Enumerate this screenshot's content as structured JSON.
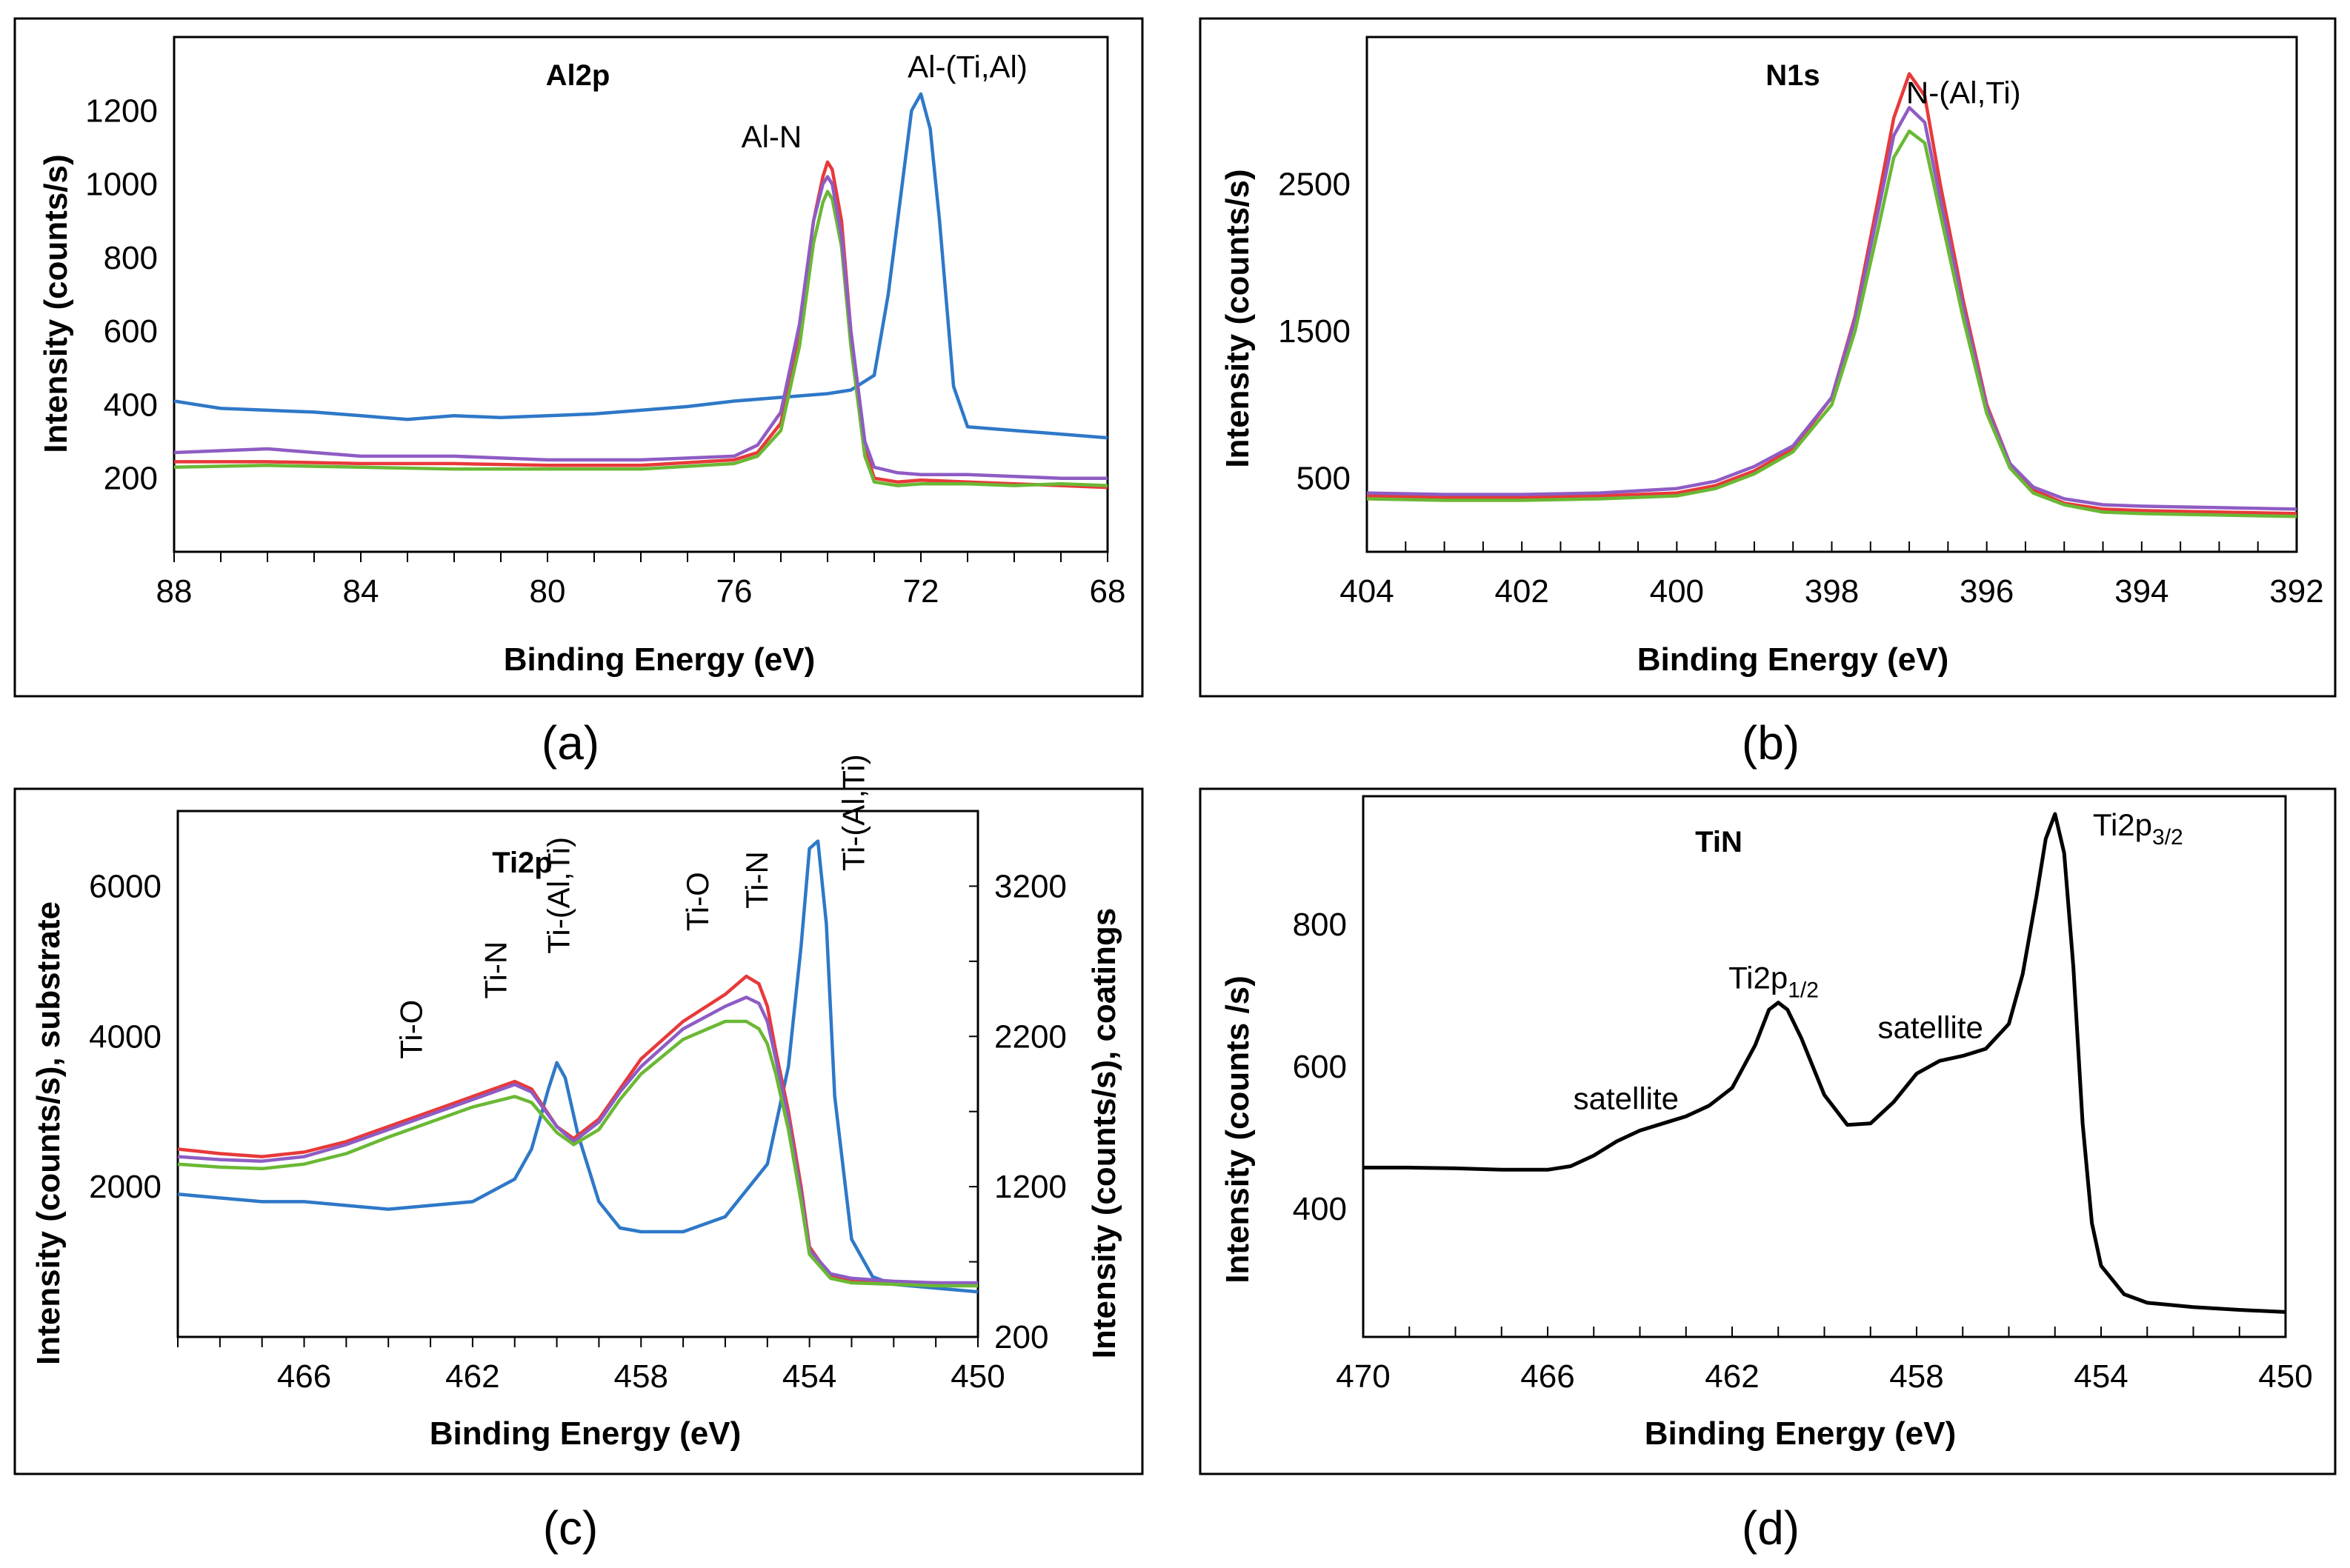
{
  "chart_data": [
    {
      "id": "a",
      "type": "line",
      "caption": "(a)",
      "title": "Al2p",
      "xlabel": "Binding Energy (eV)",
      "ylabel": "Intensity (counts/s)",
      "xlim": [
        88,
        68
      ],
      "ylim": [
        0,
        1400
      ],
      "xticks": [
        88,
        84,
        80,
        76,
        72,
        68
      ],
      "yticks": [
        200,
        400,
        600,
        800,
        1000,
        1200
      ],
      "annotations": [
        {
          "text": "Al-N",
          "x": 75.2,
          "y": 1100,
          "rotate": 0
        },
        {
          "text": "Al-(Ti,Al)",
          "x": 71.0,
          "y": 1290,
          "rotate": 0
        }
      ],
      "series": [
        {
          "name": "blue",
          "color": "#2e78c8",
          "x": [
            88,
            87,
            86,
            85,
            84,
            83,
            82,
            81,
            80,
            79,
            78,
            77,
            76,
            75,
            74,
            73.5,
            73,
            72.7,
            72.4,
            72.2,
            72,
            71.8,
            71.6,
            71.3,
            71,
            70.5,
            70,
            69,
            68
          ],
          "y": [
            410,
            390,
            385,
            380,
            370,
            360,
            370,
            365,
            370,
            375,
            385,
            395,
            410,
            420,
            430,
            440,
            480,
            700,
            1000,
            1200,
            1245,
            1150,
            900,
            450,
            340,
            335,
            330,
            320,
            310
          ]
        },
        {
          "name": "red",
          "color": "#e8393a",
          "x": [
            88,
            86,
            84,
            82,
            80,
            78,
            76,
            75.5,
            75,
            74.6,
            74.3,
            74.1,
            74,
            73.9,
            73.7,
            73.5,
            73.2,
            73,
            72.5,
            72,
            71,
            70,
            69,
            68
          ],
          "y": [
            245,
            245,
            240,
            240,
            235,
            235,
            250,
            270,
            350,
            600,
            900,
            1020,
            1060,
            1040,
            900,
            600,
            280,
            200,
            190,
            195,
            190,
            185,
            180,
            175
          ]
        },
        {
          "name": "green",
          "color": "#6ab834",
          "x": [
            88,
            86,
            84,
            82,
            80,
            78,
            76,
            75.5,
            75,
            74.6,
            74.3,
            74.1,
            74,
            73.9,
            73.7,
            73.5,
            73.2,
            73,
            72.5,
            72,
            71,
            70,
            69,
            68
          ],
          "y": [
            230,
            235,
            230,
            225,
            225,
            225,
            240,
            260,
            330,
            560,
            840,
            950,
            980,
            960,
            830,
            560,
            260,
            190,
            180,
            185,
            185,
            180,
            185,
            180
          ]
        },
        {
          "name": "purple",
          "color": "#8e5cc4",
          "x": [
            88,
            86,
            84,
            82,
            80,
            78,
            76,
            75.5,
            75,
            74.6,
            74.3,
            74.1,
            74,
            73.9,
            73.7,
            73.5,
            73.2,
            73,
            72.5,
            72,
            71,
            70,
            69,
            68
          ],
          "y": [
            270,
            280,
            260,
            260,
            250,
            250,
            260,
            290,
            380,
            620,
            900,
            1000,
            1020,
            1000,
            860,
            600,
            300,
            230,
            215,
            210,
            210,
            205,
            200,
            200
          ]
        }
      ]
    },
    {
      "id": "b",
      "type": "line",
      "caption": "(b)",
      "title": "N1s",
      "xlabel": "Binding Energy (eV)",
      "ylabel": "Intensity (counts/s)",
      "xlim": [
        404,
        392
      ],
      "ylim": [
        0,
        3500
      ],
      "xticks": [
        404,
        402,
        400,
        398,
        396,
        394,
        392
      ],
      "yticks": [
        500,
        1500,
        2500
      ],
      "annotations": [
        {
          "text": "N-(Al,Ti)",
          "x": 396.3,
          "y": 3050,
          "rotate": 0
        }
      ],
      "series": [
        {
          "name": "red",
          "color": "#e8393a",
          "x": [
            404,
            403,
            402,
            401,
            400,
            399.5,
            399,
            398.5,
            398,
            397.7,
            397.4,
            397.2,
            397,
            396.8,
            396.6,
            396.3,
            396,
            395.7,
            395.4,
            395,
            394.5,
            394,
            393,
            392
          ],
          "y": [
            380,
            370,
            370,
            380,
            400,
            450,
            550,
            700,
            1050,
            1600,
            2400,
            2950,
            3250,
            3100,
            2500,
            1700,
            1000,
            600,
            420,
            330,
            290,
            280,
            270,
            260
          ]
        },
        {
          "name": "purple",
          "color": "#8e5cc4",
          "x": [
            404,
            403,
            402,
            401,
            400,
            399.5,
            399,
            398.5,
            398,
            397.7,
            397.4,
            397.2,
            397,
            396.8,
            396.6,
            396.3,
            396,
            395.7,
            395.4,
            395,
            394.5,
            394,
            393,
            392
          ],
          "y": [
            400,
            390,
            390,
            400,
            430,
            480,
            580,
            720,
            1050,
            1580,
            2320,
            2830,
            3020,
            2920,
            2400,
            1650,
            980,
            600,
            440,
            360,
            320,
            310,
            300,
            290
          ]
        },
        {
          "name": "green",
          "color": "#6ab834",
          "x": [
            404,
            403,
            402,
            401,
            400,
            399.5,
            399,
            398.5,
            398,
            397.7,
            397.4,
            397.2,
            397,
            396.8,
            396.6,
            396.3,
            396,
            395.7,
            395.4,
            395,
            394.5,
            394,
            393,
            392
          ],
          "y": [
            360,
            350,
            350,
            360,
            380,
            430,
            530,
            680,
            1000,
            1500,
            2200,
            2680,
            2860,
            2780,
            2300,
            1580,
            940,
            570,
            400,
            320,
            270,
            260,
            250,
            240
          ]
        }
      ]
    },
    {
      "id": "c",
      "type": "line",
      "caption": "(c)",
      "title": "Ti2p",
      "xlabel": "Binding Energy (eV)",
      "ylabel": "Intensity (counts/s), substrate",
      "ylabel_right": "Intensity (counts/s), coatings",
      "xlim": [
        469,
        450
      ],
      "ylim": [
        0,
        7000
      ],
      "ylim_right": [
        200,
        3700
      ],
      "xticks": [
        466,
        462,
        458,
        454,
        450
      ],
      "yticks": [
        2000,
        4000,
        6000
      ],
      "yticks_right": [
        200,
        1200,
        2200,
        3200
      ],
      "annotations": [
        {
          "text": "Ti-O",
          "x": 463.2,
          "y": 3700,
          "rotate": -90
        },
        {
          "text": "Ti-N",
          "x": 461.2,
          "y": 4500,
          "rotate": -90
        },
        {
          "text": "Ti-(Al,Ti)",
          "x": 459.7,
          "y": 5100,
          "rotate": -90
        },
        {
          "text": "Ti-O",
          "x": 456.4,
          "y": 5400,
          "rotate": -90
        },
        {
          "text": "Ti-N",
          "x": 455.0,
          "y": 5700,
          "rotate": -90
        },
        {
          "text": "Ti-(Al,Ti)",
          "x": 452.7,
          "y": 6200,
          "rotate": -90
        }
      ],
      "series": [
        {
          "name": "blue",
          "axis": "left",
          "color": "#2e78c8",
          "x": [
            469,
            468,
            467,
            466,
            465,
            464,
            463,
            462,
            461,
            460.6,
            460.2,
            460,
            459.8,
            459.5,
            459,
            458.5,
            458,
            457,
            456,
            455,
            454.5,
            454.2,
            454,
            453.8,
            453.6,
            453.4,
            453,
            452.5,
            452,
            451,
            450
          ],
          "y": [
            1900,
            1850,
            1800,
            1800,
            1750,
            1700,
            1750,
            1800,
            2100,
            2500,
            3300,
            3650,
            3450,
            2700,
            1800,
            1450,
            1400,
            1400,
            1600,
            2300,
            3600,
            5200,
            6500,
            6600,
            5500,
            3200,
            1300,
            800,
            700,
            650,
            600
          ]
        },
        {
          "name": "red",
          "axis": "right",
          "color": "#e8393a",
          "x": [
            469,
            468,
            467,
            466,
            465,
            464,
            463,
            462,
            461,
            460.6,
            460,
            459.6,
            459,
            458.5,
            458,
            457,
            456,
            455.5,
            455.2,
            455,
            454.8,
            454.5,
            454.2,
            454,
            453.5,
            453,
            452,
            451,
            450
          ],
          "y": [
            1450,
            1420,
            1400,
            1430,
            1500,
            1600,
            1700,
            1800,
            1900,
            1850,
            1600,
            1520,
            1650,
            1850,
            2050,
            2300,
            2480,
            2600,
            2550,
            2400,
            2100,
            1700,
            1200,
            800,
            600,
            580,
            560,
            560,
            550
          ]
        },
        {
          "name": "purple",
          "axis": "right",
          "color": "#8e5cc4",
          "x": [
            469,
            468,
            467,
            466,
            465,
            464,
            463,
            462,
            461,
            460.6,
            460,
            459.6,
            459,
            458.5,
            458,
            457,
            456,
            455.5,
            455.2,
            455,
            454.8,
            454.5,
            454.2,
            454,
            453.5,
            453,
            452,
            451,
            450
          ],
          "y": [
            1400,
            1380,
            1370,
            1400,
            1480,
            1580,
            1680,
            1780,
            1880,
            1830,
            1600,
            1500,
            1630,
            1830,
            2000,
            2250,
            2400,
            2460,
            2420,
            2300,
            2050,
            1650,
            1150,
            780,
            620,
            590,
            570,
            560,
            560
          ]
        },
        {
          "name": "green",
          "axis": "right",
          "color": "#6ab834",
          "x": [
            469,
            468,
            467,
            466,
            465,
            464,
            463,
            462,
            461,
            460.6,
            460,
            459.6,
            459,
            458.5,
            458,
            457,
            456,
            455.5,
            455.2,
            455,
            454.8,
            454.5,
            454.2,
            454,
            453.5,
            453,
            452,
            451,
            450
          ],
          "y": [
            1350,
            1330,
            1320,
            1350,
            1420,
            1530,
            1630,
            1730,
            1800,
            1760,
            1560,
            1480,
            1580,
            1780,
            1950,
            2180,
            2300,
            2300,
            2250,
            2150,
            1950,
            1580,
            1100,
            750,
            590,
            560,
            550,
            540,
            540
          ]
        }
      ]
    },
    {
      "id": "d",
      "type": "line",
      "caption": "(d)",
      "title": "TiN",
      "xlabel": "Binding Energy (eV)",
      "ylabel": "Intensity (counts /s)",
      "xlim": [
        470,
        450
      ],
      "ylim": [
        220,
        980
      ],
      "xticks": [
        470,
        466,
        462,
        458,
        454,
        450
      ],
      "yticks": [
        400,
        600,
        800
      ],
      "annotations": [
        {
          "text": "satellite",
          "x": 464.3,
          "y": 540,
          "rotate": 0
        },
        {
          "text": "Ti2p",
          "sub": "1/2",
          "x": 461.1,
          "y": 710,
          "rotate": 0
        },
        {
          "text": "satellite",
          "x": 457.7,
          "y": 640,
          "rotate": 0
        },
        {
          "text": "Ti2p",
          "sub": "3/2",
          "x": 453.2,
          "y": 925,
          "rotate": 0
        }
      ],
      "series": [
        {
          "name": "black",
          "color": "#000000",
          "x": [
            470,
            469,
            468,
            467,
            466,
            465.5,
            465,
            464.5,
            464,
            463.5,
            463,
            462.5,
            462,
            461.5,
            461.2,
            461,
            460.8,
            460.5,
            460,
            459.5,
            459,
            458.5,
            458,
            457.5,
            457,
            456.5,
            456,
            455.7,
            455.4,
            455.2,
            455,
            454.8,
            454.6,
            454.4,
            454.2,
            454,
            453.5,
            453,
            452,
            451,
            450
          ],
          "y": [
            458,
            458,
            457,
            455,
            455,
            460,
            475,
            495,
            510,
            520,
            530,
            545,
            570,
            630,
            680,
            690,
            680,
            640,
            560,
            518,
            520,
            550,
            590,
            608,
            615,
            625,
            660,
            730,
            840,
            920,
            955,
            900,
            740,
            520,
            380,
            320,
            280,
            268,
            262,
            258,
            255
          ]
        }
      ]
    }
  ]
}
